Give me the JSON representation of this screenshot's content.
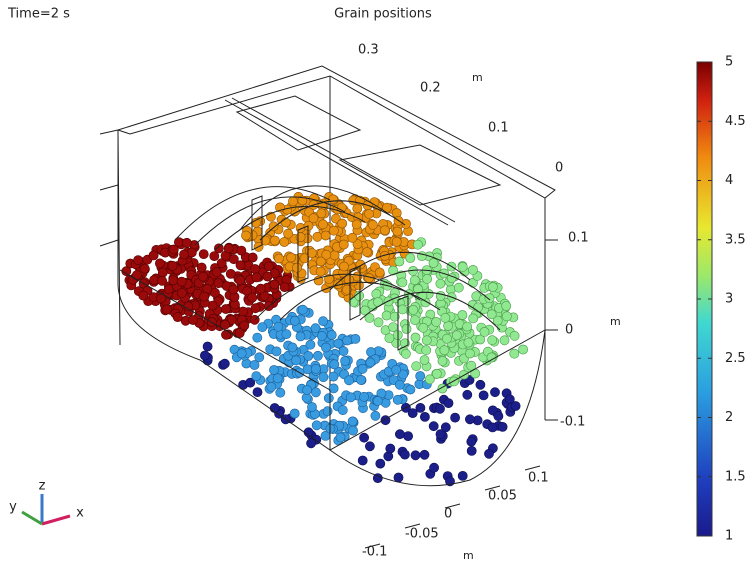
{
  "header": {
    "time_label": "Time=2 s",
    "title": "Grain positions"
  },
  "colorbar": {
    "range": [
      1,
      5
    ],
    "ticks": [
      1,
      1.5,
      2,
      2.5,
      3,
      3.5,
      4,
      4.5,
      5
    ]
  },
  "back_axis": {
    "ticks": [
      0.3,
      0.2,
      0.1,
      0
    ],
    "unit": "m"
  },
  "side_axis": {
    "ticks": [
      0.1,
      0,
      -0.1
    ],
    "unit": "m"
  },
  "front_axis": {
    "ticks": [
      0.1,
      0.05,
      0,
      -0.05,
      -0.1
    ],
    "unit": "m"
  },
  "triad": {
    "x": "x",
    "y": "y",
    "z": "z"
  }
}
